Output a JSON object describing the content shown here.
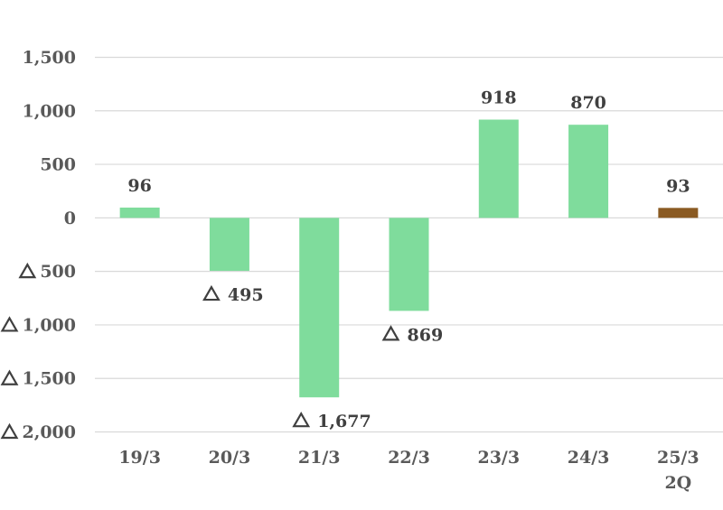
{
  "chart_data": {
    "type": "bar",
    "title": "",
    "xlabel": "",
    "ylabel": "",
    "ylim": [
      -2000,
      1500
    ],
    "yticks": [
      1500,
      1000,
      500,
      0,
      -500,
      -1000,
      -1500,
      -2000
    ],
    "ytick_labels": [
      "1,500",
      "1,000",
      "500",
      "0",
      "500",
      "1,000",
      "1,500",
      "2,000"
    ],
    "negative_marker": "triangle-icon",
    "grid": true,
    "categories": [
      [
        "19/3"
      ],
      [
        "20/3"
      ],
      [
        "21/3"
      ],
      [
        "22/3"
      ],
      [
        "23/3"
      ],
      [
        "24/3"
      ],
      [
        "25/3",
        "2Q"
      ]
    ],
    "values": [
      96,
      -495,
      -1677,
      -869,
      918,
      870,
      93
    ],
    "value_labels": [
      "96",
      "495",
      "1,677",
      "869",
      "918",
      "870",
      "93"
    ],
    "colors": [
      "#7fdc9c",
      "#7fdc9c",
      "#7fdc9c",
      "#7fdc9c",
      "#7fdc9c",
      "#7fdc9c",
      "#8a5a22"
    ]
  }
}
